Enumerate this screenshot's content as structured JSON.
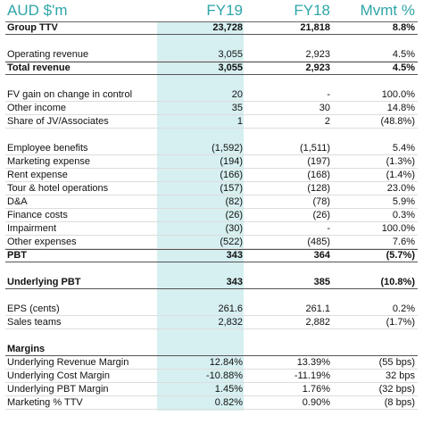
{
  "table": {
    "header": [
      "AUD $'m",
      "FY19",
      "FY18",
      "Mvmt %"
    ],
    "sections": [
      {
        "rows": [
          {
            "cells": [
              "Group TTV",
              "23,728",
              "21,818",
              "8.8%"
            ],
            "bold": true
          }
        ]
      },
      {
        "rows": [
          {
            "cells": [
              "Operating revenue",
              "3,055",
              "2,923",
              "4.5%"
            ]
          },
          {
            "cells": [
              "Total revenue",
              "3,055",
              "2,923",
              "4.5%"
            ],
            "bold": true
          }
        ]
      },
      {
        "rows": [
          {
            "cells": [
              "FV gain on change in control",
              "20",
              "-",
              "100.0%"
            ]
          },
          {
            "cells": [
              "Other income",
              "35",
              "30",
              "14.8%"
            ]
          },
          {
            "cells": [
              "Share of JV/Associates",
              "1",
              "2",
              "(48.8%)"
            ]
          }
        ]
      },
      {
        "rows": [
          {
            "cells": [
              "Employee benefits",
              "(1,592)",
              "(1,511)",
              "5.4%"
            ]
          },
          {
            "cells": [
              "Marketing expense",
              "(194)",
              "(197)",
              "(1.3%)"
            ]
          },
          {
            "cells": [
              "Rent expense",
              "(166)",
              "(168)",
              "(1.4%)"
            ]
          },
          {
            "cells": [
              "Tour & hotel operations",
              "(157)",
              "(128)",
              "23.0%"
            ]
          },
          {
            "cells": [
              "D&A",
              "(82)",
              "(78)",
              "5.9%"
            ]
          },
          {
            "cells": [
              "Finance costs",
              "(26)",
              "(26)",
              "0.3%"
            ]
          },
          {
            "cells": [
              "Impairment",
              "(30)",
              "-",
              "100.0%"
            ]
          },
          {
            "cells": [
              "Other expenses",
              "(522)",
              "(485)",
              "7.6%"
            ]
          },
          {
            "cells": [
              "PBT",
              "343",
              "364",
              "(5.7%)"
            ],
            "bold": true
          }
        ]
      },
      {
        "rows": [
          {
            "cells": [
              "Underlying PBT",
              "343",
              "385",
              "(10.8%)"
            ],
            "bold": true
          }
        ]
      },
      {
        "rows": [
          {
            "cells": [
              "EPS (cents)",
              "261.6",
              "261.1",
              "0.2%"
            ]
          },
          {
            "cells": [
              "Sales teams",
              "2,832",
              "2,882",
              "(1.7%)"
            ]
          }
        ]
      },
      {
        "rows": [
          {
            "cells": [
              "Margins"
            ],
            "bold": true
          },
          {
            "cells": [
              "Underlying Revenue Margin",
              "12.84%",
              "13.39%",
              "(55 bps)"
            ]
          },
          {
            "cells": [
              "Underlying Cost Margin",
              "-10.88%",
              "-11.19%",
              "32 bps"
            ]
          },
          {
            "cells": [
              "Underlying PBT Margin",
              "1.45%",
              "1.76%",
              "(32 bps)"
            ]
          },
          {
            "cells": [
              "Marketing % TTV",
              "0.82%",
              "0.90%",
              "(8 bps)"
            ]
          }
        ]
      }
    ]
  }
}
